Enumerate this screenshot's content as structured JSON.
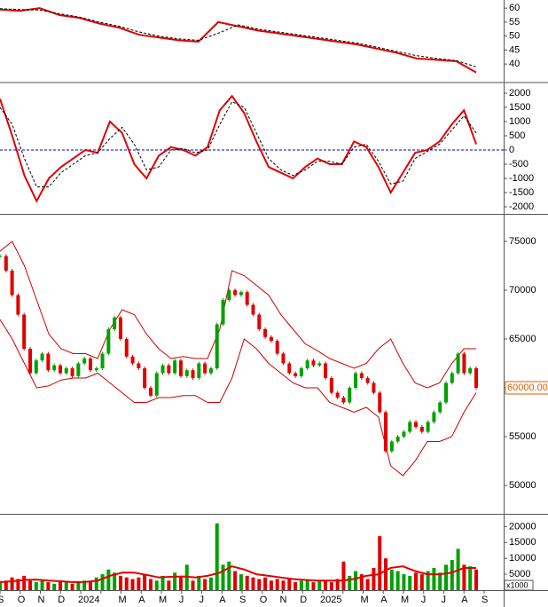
{
  "chart_data": [
    {
      "type": "line",
      "ylim": [
        33.7,
        62.9
      ],
      "yticks": [
        40,
        45,
        50,
        55,
        60
      ],
      "series": [
        {
          "color": "#e00000",
          "style": "solid",
          "values": [
            59.5,
            59,
            60,
            57.5,
            56.5,
            54.5,
            53,
            50.5,
            49.5,
            48.5,
            48,
            55,
            53.5,
            52,
            51,
            50,
            49,
            48,
            47,
            45.5,
            44,
            42,
            41.5,
            41,
            37
          ]
        },
        {
          "color": "#000000",
          "style": "dashed",
          "values": [
            59.8,
            59.5,
            59.3,
            58,
            56.8,
            55,
            53.5,
            51.5,
            50,
            49,
            48.5,
            51,
            54,
            52.5,
            51.5,
            50.5,
            49.5,
            48.5,
            47.5,
            46,
            44.5,
            43,
            42,
            41.2,
            39
          ]
        }
      ]
    },
    {
      "type": "line",
      "ylim": [
        -2219,
        2312
      ],
      "yticks": [
        -2000,
        -1500,
        -1000,
        -500,
        0,
        500,
        1000,
        1500,
        2000
      ],
      "hline": 0,
      "hline_color": "#0000cc",
      "series": [
        {
          "color": "#e00000",
          "style": "solid",
          "values": [
            1800,
            500,
            -900,
            -1800,
            -1000,
            -600,
            -300,
            0,
            -100,
            1000,
            600,
            -500,
            -1000,
            -200,
            100,
            0,
            -200,
            100,
            1400,
            1900,
            1300,
            300,
            -600,
            -800,
            -1000,
            -600,
            -300,
            -500,
            -500,
            300,
            100,
            -600,
            -1500,
            -800,
            -100,
            0,
            300,
            900,
            1400,
            200
          ]
        },
        {
          "color": "#000000",
          "style": "dashed",
          "values": [
            1500,
            900,
            -300,
            -1300,
            -1300,
            -800,
            -500,
            -200,
            -100,
            400,
            800,
            200,
            -700,
            -600,
            0,
            50,
            -100,
            0,
            900,
            1700,
            1500,
            600,
            -300,
            -700,
            -900,
            -700,
            -400,
            -400,
            -500,
            100,
            200,
            -400,
            -1200,
            -1100,
            -300,
            -50,
            200,
            700,
            1200,
            600
          ]
        }
      ]
    },
    {
      "type": "candlestick",
      "ylim": [
        47182,
        77636
      ],
      "yticks": [
        50000,
        55000,
        60000,
        65000,
        70000,
        75000
      ],
      "up_color": "#00a000",
      "down_color": "#e00000",
      "close": [
        73500,
        72000,
        69500,
        67500,
        64000,
        61500,
        62800,
        63500,
        61800,
        62300,
        61500,
        62000,
        61200,
        62500,
        63000,
        61800,
        62000,
        63500,
        66000,
        67200,
        65000,
        63200,
        62500,
        62000,
        60000,
        59200,
        61500,
        62300,
        61500,
        62800,
        61200,
        61800,
        61000,
        62500,
        61500,
        62000,
        66500,
        69000,
        70000,
        69500,
        69800,
        68500,
        67500,
        66000,
        65200,
        64800,
        63500,
        62500,
        61500,
        61200,
        62000,
        62800,
        62300,
        62500,
        61000,
        59500,
        59000,
        58500,
        60000,
        61500,
        61000,
        60500,
        59500,
        57500,
        53500,
        54500,
        55000,
        55500,
        56500,
        56000,
        55500,
        56500,
        57500,
        58500,
        60500,
        61500,
        63500,
        61500,
        62000,
        60000
      ],
      "bands": [
        {
          "color": "#cc0000",
          "values": [
            74000,
            75000,
            72500,
            69000,
            65500,
            64000,
            63500,
            63500,
            63000,
            66000,
            68000,
            67500,
            65500,
            64000,
            63000,
            63200,
            63000,
            63000,
            66000,
            72000,
            71500,
            70500,
            69500,
            67500,
            66000,
            64500,
            63800,
            63000,
            62500,
            62000,
            62500,
            64000,
            65000,
            62500,
            60500,
            60000,
            60500,
            62500,
            64000,
            64000
          ]
        },
        {
          "color": "#cc0000",
          "values": [
            67000,
            65000,
            62500,
            60000,
            60200,
            60800,
            61000,
            61000,
            61500,
            60500,
            59500,
            58500,
            58500,
            59000,
            59000,
            59200,
            59200,
            58500,
            58500,
            61000,
            65000,
            64000,
            62500,
            61500,
            60500,
            60000,
            60000,
            58500,
            58000,
            57500,
            58000,
            57000,
            52000,
            51000,
            52500,
            54500,
            54500,
            55000,
            57500,
            59500
          ]
        }
      ],
      "last_label": {
        "value": 60000,
        "label": "60000.00"
      }
    },
    {
      "type": "bar",
      "ylim": [
        0,
        23461
      ],
      "yticks": [
        5000,
        10000,
        15000,
        20000
      ],
      "unit_label": "x1000",
      "values": [
        2500,
        3000,
        4000,
        3500,
        4500,
        3000,
        2500,
        3000,
        2500,
        2000,
        3000,
        2500,
        2000,
        2500,
        3000,
        2500,
        4000,
        5000,
        6500,
        5500,
        4500,
        4000,
        3500,
        4000,
        5000,
        3500,
        3000,
        4500,
        3000,
        5500,
        4000,
        8000,
        3000,
        4500,
        3500,
        4000,
        21000,
        8000,
        9000,
        6000,
        5000,
        4500,
        4000,
        3500,
        4000,
        3000,
        3500,
        3000,
        3500,
        2500,
        3000,
        3500,
        2500,
        3000,
        3000,
        2500,
        3500,
        9000,
        4500,
        6000,
        5000,
        3500,
        7000,
        17000,
        10000,
        6500,
        6000,
        5000,
        4500,
        5500,
        5000,
        6000,
        7000,
        5500,
        8000,
        9500,
        13000,
        8000,
        7500,
        6500
      ],
      "series": [
        {
          "color": "#e00000",
          "style": "solid",
          "values": [
            2500,
            2800,
            3200,
            3300,
            3000,
            2800,
            2500,
            2600,
            3000,
            4500,
            5500,
            5500,
            4800,
            4000,
            4200,
            4300,
            4000,
            4500,
            5500,
            7500,
            6500,
            5000,
            4500,
            4000,
            3500,
            3200,
            3000,
            3000,
            3000,
            3500,
            4500,
            5000,
            7000,
            7500,
            6000,
            5000,
            5000,
            5500,
            7000,
            7000
          ]
        }
      ],
      "x_labels": [
        "S",
        "O",
        "N",
        "D",
        "2024",
        null,
        "M",
        "A",
        "M",
        "J",
        "J",
        "A",
        "S",
        "O",
        "N",
        "D",
        "2025",
        null,
        "M",
        "A",
        "M",
        "J",
        "J",
        "A",
        "S"
      ]
    }
  ]
}
